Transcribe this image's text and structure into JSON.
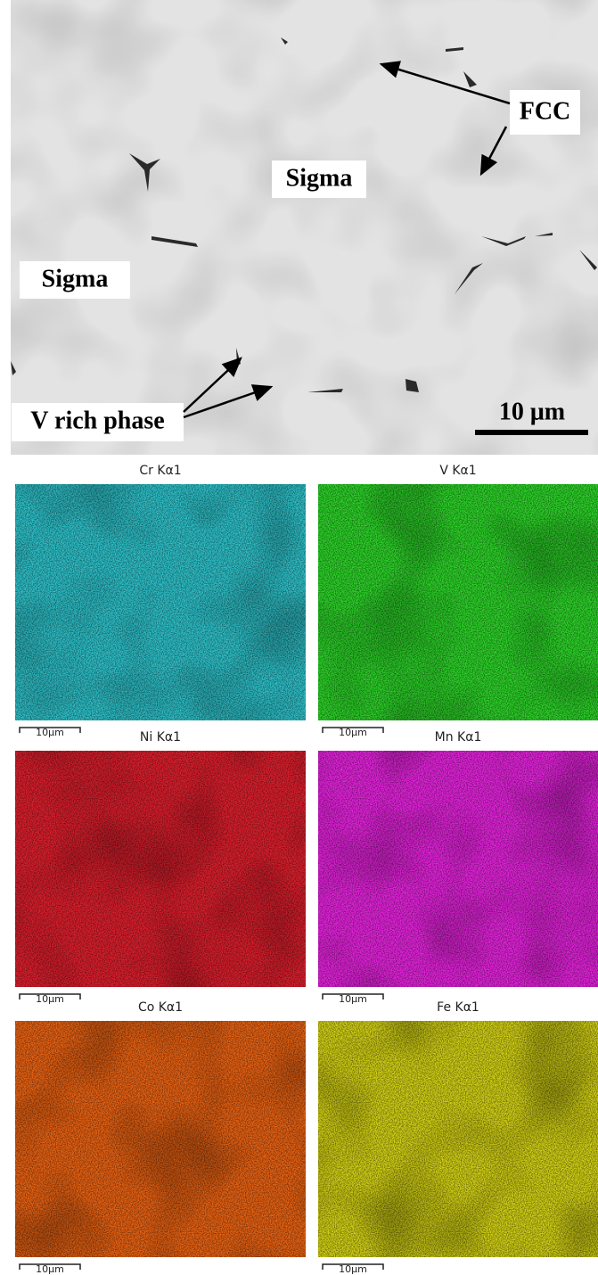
{
  "sem": {
    "labels": [
      "FCC",
      "Sigma",
      "Sigma",
      "V rich phase"
    ],
    "scale_bar": "10 μm"
  },
  "maps": [
    {
      "title": "Cr Kα1",
      "color": "#2fc4cc",
      "scale_bar": "10μm"
    },
    {
      "title": "V Kα1",
      "color": "#2ed62a",
      "scale_bar": "10μm"
    },
    {
      "title": "Ni Kα1",
      "color": "#e0202e",
      "scale_bar": "10μm"
    },
    {
      "title": "Mn Kα1",
      "color": "#e824e0",
      "scale_bar": "10μm"
    },
    {
      "title": "Co Kα1",
      "color": "#ec6414",
      "scale_bar": "10μm"
    },
    {
      "title": "Fe Kα1",
      "color": "#d6d416",
      "scale_bar": "10μm"
    }
  ]
}
